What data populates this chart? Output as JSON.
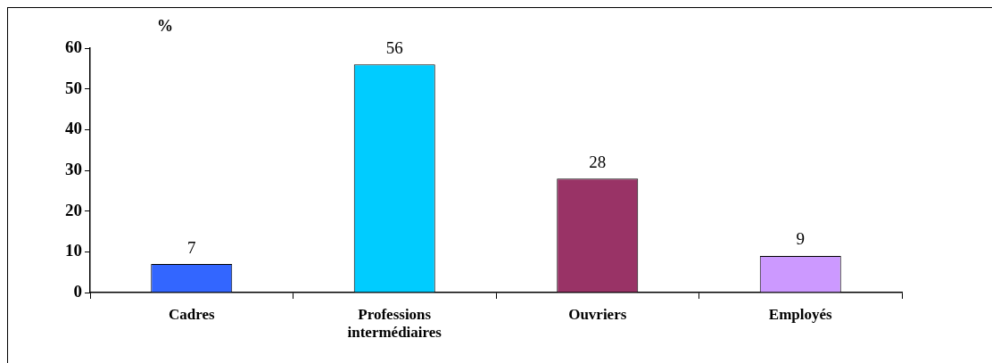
{
  "chart_data": {
    "type": "bar",
    "categories": [
      "Cadres",
      "Professions intermédiaires",
      "Ouvriers",
      "Employés"
    ],
    "values": [
      7,
      56,
      28,
      9
    ],
    "colors": [
      "#3366ff",
      "#00ccff",
      "#993366",
      "#cc99ff"
    ],
    "ylabel": "%",
    "ylim": [
      0,
      60
    ],
    "yticks": [
      0,
      10,
      20,
      30,
      40,
      50,
      60
    ],
    "data_labels": true
  }
}
